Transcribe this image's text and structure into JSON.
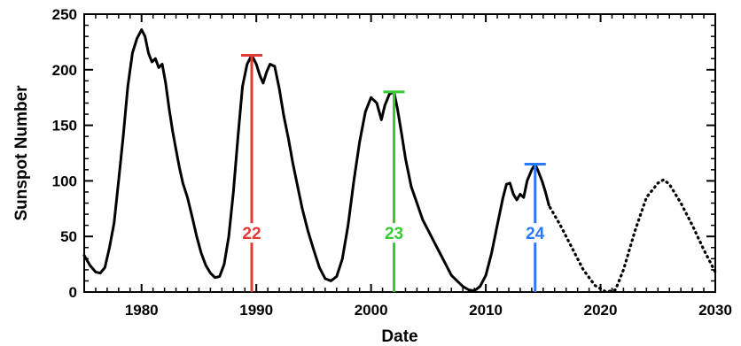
{
  "chart_data": {
    "type": "line",
    "title": "",
    "xlabel": "Date",
    "ylabel": "Sunspot Number",
    "xlim": [
      1975,
      2030
    ],
    "ylim": [
      0,
      250
    ],
    "x_ticks": [
      1980,
      1990,
      2000,
      2010,
      2020,
      2030
    ],
    "y_ticks": [
      0,
      50,
      100,
      150,
      200,
      250
    ],
    "grid": false,
    "legend": "none",
    "series": [
      {
        "style": "solid",
        "color": "#000000",
        "points": [
          [
            1975.0,
            33
          ],
          [
            1975.5,
            24
          ],
          [
            1976.0,
            18
          ],
          [
            1976.4,
            17
          ],
          [
            1976.8,
            22
          ],
          [
            1977.2,
            40
          ],
          [
            1977.6,
            62
          ],
          [
            1978.0,
            100
          ],
          [
            1978.4,
            140
          ],
          [
            1978.8,
            185
          ],
          [
            1979.2,
            215
          ],
          [
            1979.6,
            228
          ],
          [
            1980.0,
            236
          ],
          [
            1980.3,
            230
          ],
          [
            1980.6,
            215
          ],
          [
            1980.9,
            207
          ],
          [
            1981.2,
            210
          ],
          [
            1981.5,
            202
          ],
          [
            1981.8,
            205
          ],
          [
            1982.1,
            188
          ],
          [
            1982.4,
            165
          ],
          [
            1982.7,
            145
          ],
          [
            1983.0,
            128
          ],
          [
            1983.3,
            112
          ],
          [
            1983.6,
            98
          ],
          [
            1984.0,
            85
          ],
          [
            1984.4,
            68
          ],
          [
            1984.8,
            50
          ],
          [
            1985.2,
            35
          ],
          [
            1985.6,
            24
          ],
          [
            1986.0,
            17
          ],
          [
            1986.4,
            13
          ],
          [
            1986.8,
            14
          ],
          [
            1987.2,
            25
          ],
          [
            1987.6,
            50
          ],
          [
            1988.0,
            90
          ],
          [
            1988.4,
            140
          ],
          [
            1988.8,
            185
          ],
          [
            1989.2,
            205
          ],
          [
            1989.6,
            213
          ],
          [
            1990.0,
            205
          ],
          [
            1990.3,
            195
          ],
          [
            1990.6,
            188
          ],
          [
            1990.9,
            198
          ],
          [
            1991.2,
            205
          ],
          [
            1991.6,
            203
          ],
          [
            1992.0,
            183
          ],
          [
            1992.4,
            158
          ],
          [
            1992.8,
            138
          ],
          [
            1993.2,
            115
          ],
          [
            1993.6,
            95
          ],
          [
            1994.0,
            75
          ],
          [
            1994.5,
            55
          ],
          [
            1995.0,
            38
          ],
          [
            1995.5,
            22
          ],
          [
            1996.0,
            12
          ],
          [
            1996.5,
            10
          ],
          [
            1997.0,
            14
          ],
          [
            1997.5,
            30
          ],
          [
            1998.0,
            60
          ],
          [
            1998.5,
            100
          ],
          [
            1999.0,
            135
          ],
          [
            1999.5,
            162
          ],
          [
            2000.0,
            175
          ],
          [
            2000.5,
            170
          ],
          [
            2000.9,
            155
          ],
          [
            2001.2,
            168
          ],
          [
            2001.6,
            178
          ],
          [
            2002.0,
            180
          ],
          [
            2002.3,
            165
          ],
          [
            2002.7,
            140
          ],
          [
            2003.0,
            120
          ],
          [
            2003.5,
            95
          ],
          [
            2004.0,
            80
          ],
          [
            2004.5,
            65
          ],
          [
            2005.0,
            55
          ],
          [
            2005.5,
            45
          ],
          [
            2006.0,
            35
          ],
          [
            2006.5,
            25
          ],
          [
            2007.0,
            15
          ],
          [
            2007.5,
            10
          ],
          [
            2008.0,
            5
          ],
          [
            2008.5,
            2
          ],
          [
            2009.0,
            1
          ],
          [
            2009.5,
            5
          ],
          [
            2010.0,
            15
          ],
          [
            2010.5,
            35
          ],
          [
            2011.0,
            60
          ],
          [
            2011.5,
            85
          ],
          [
            2011.8,
            97
          ],
          [
            2012.1,
            98
          ],
          [
            2012.4,
            88
          ],
          [
            2012.7,
            83
          ],
          [
            2013.0,
            88
          ],
          [
            2013.3,
            85
          ],
          [
            2013.6,
            100
          ],
          [
            2014.0,
            110
          ],
          [
            2014.3,
            115
          ],
          [
            2014.6,
            108
          ],
          [
            2014.9,
            100
          ],
          [
            2015.2,
            90
          ],
          [
            2015.5,
            78
          ]
        ]
      },
      {
        "style": "dotted",
        "color": "#000000",
        "points": [
          [
            2015.6,
            76
          ],
          [
            2016.5,
            60
          ],
          [
            2017.5,
            40
          ],
          [
            2018.5,
            20
          ],
          [
            2019.5,
            6
          ],
          [
            2020.5,
            0
          ],
          [
            2021.3,
            2
          ],
          [
            2022.0,
            20
          ],
          [
            2023.0,
            55
          ],
          [
            2024.0,
            85
          ],
          [
            2025.0,
            98
          ],
          [
            2025.5,
            101
          ],
          [
            2026.0,
            97
          ],
          [
            2027.0,
            80
          ],
          [
            2028.0,
            60
          ],
          [
            2029.0,
            38
          ],
          [
            2030.0,
            18
          ]
        ]
      }
    ],
    "markers": [
      {
        "label": "22",
        "x": 1989.6,
        "y": 213,
        "color": "#e53935",
        "label_y": 50
      },
      {
        "label": "23",
        "x": 2002.0,
        "y": 180,
        "color": "#33cc33",
        "label_y": 50
      },
      {
        "label": "24",
        "x": 2014.3,
        "y": 115,
        "color": "#2979ff",
        "label_y": 50
      }
    ]
  }
}
